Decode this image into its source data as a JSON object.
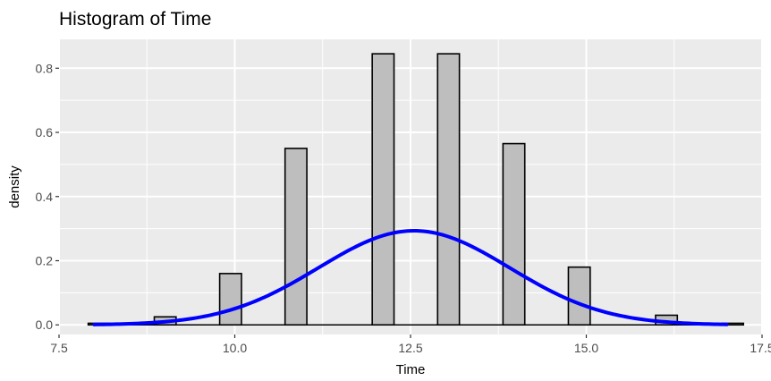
{
  "chart_data": {
    "type": "bar",
    "title": "Histogram of Time",
    "xlabel": "Time",
    "ylabel": "density",
    "xlim": [
      7.5,
      17.5
    ],
    "ylim": [
      -0.03,
      0.89
    ],
    "x_ticks": [
      7.5,
      10.0,
      12.5,
      15.0,
      17.5
    ],
    "x_tick_labels": [
      "7.5",
      "10.0",
      "12.5",
      "15.0",
      "17.5"
    ],
    "y_ticks": [
      0.0,
      0.2,
      0.4,
      0.6,
      0.8
    ],
    "y_tick_labels": [
      "0.0",
      "0.2",
      "0.4",
      "0.6",
      "0.8"
    ],
    "grid": true,
    "legend": "none",
    "bin_width": 0.31,
    "bins": [
      {
        "center": 8.07,
        "density": 0.005
      },
      {
        "center": 9.01,
        "density": 0.025
      },
      {
        "center": 9.94,
        "density": 0.16
      },
      {
        "center": 10.87,
        "density": 0.55
      },
      {
        "center": 12.11,
        "density": 0.845
      },
      {
        "center": 13.04,
        "density": 0.845
      },
      {
        "center": 13.97,
        "density": 0.565
      },
      {
        "center": 14.9,
        "density": 0.18
      },
      {
        "center": 16.14,
        "density": 0.03
      },
      {
        "center": 17.08,
        "density": 0.005
      }
    ],
    "density_curve": {
      "distribution": "normal",
      "mean": 12.55,
      "sd": 1.36,
      "x_range": [
        8.0,
        17.0
      ],
      "color": "#0000ff"
    },
    "colors": {
      "panel_background": "#ebebeb",
      "grid": "#ffffff",
      "bar_fill": "#bebebe",
      "bar_outline": "#000000",
      "curve": "#0000ff"
    }
  }
}
